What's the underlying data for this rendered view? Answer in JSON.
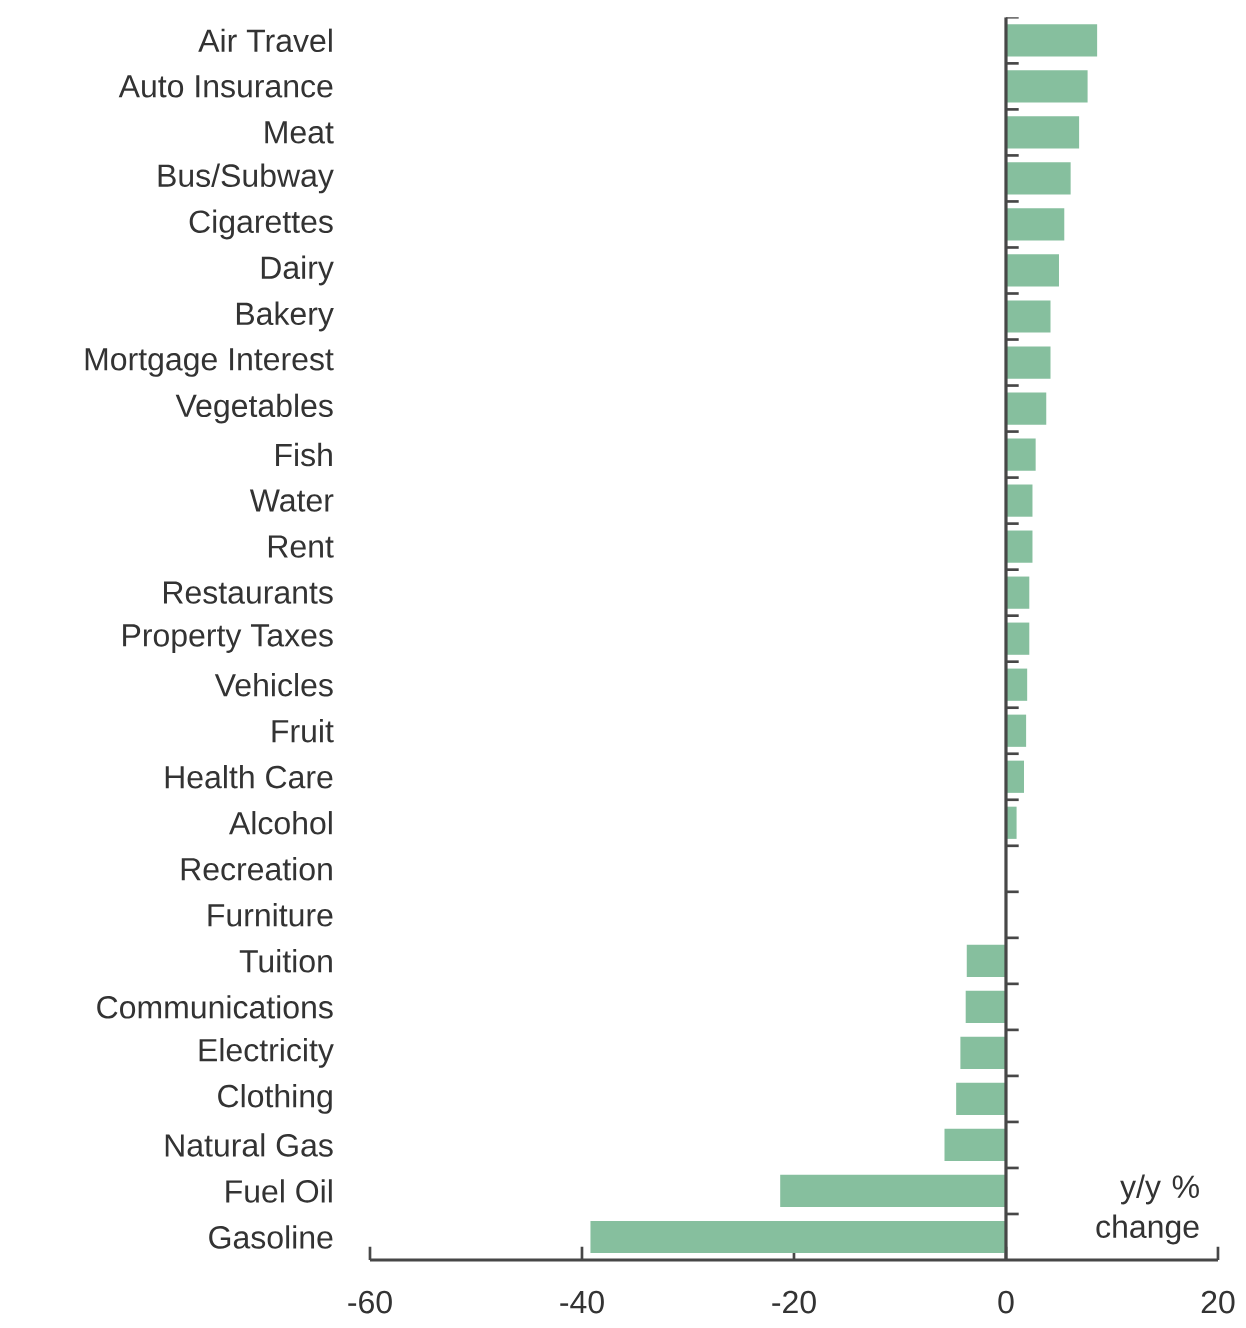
{
  "chart_data": {
    "type": "bar",
    "orientation": "horizontal",
    "categories": [
      "Air Travel",
      "Auto Insurance",
      "Meat",
      "Bus/Subway",
      "Cigarettes",
      "Dairy",
      "Bakery",
      "Mortgage Interest",
      "Vegetables",
      "Fish",
      "Water",
      "Rent",
      "Restaurants",
      "Property Taxes",
      "Vehicles",
      "Fruit",
      "Health Care",
      "Alcohol",
      "Recreation",
      "Furniture",
      "Tuition",
      "Communications",
      "Electricity",
      "Clothing",
      "Natural Gas",
      "Fuel Oil",
      "Gasoline"
    ],
    "values": [
      8.6,
      7.7,
      6.9,
      6.1,
      5.5,
      5.0,
      4.2,
      4.2,
      3.8,
      2.8,
      2.5,
      2.5,
      2.2,
      2.2,
      2.0,
      1.9,
      1.7,
      1.0,
      0,
      0,
      -3.7,
      -3.8,
      -4.3,
      -4.7,
      -5.8,
      -21.3,
      -39.2
    ],
    "color": "#86bf9e",
    "xlim": [
      -60,
      20
    ],
    "xticks": [
      -60,
      -40,
      -20,
      0,
      20
    ],
    "annotations": [
      "y/y % change"
    ]
  }
}
